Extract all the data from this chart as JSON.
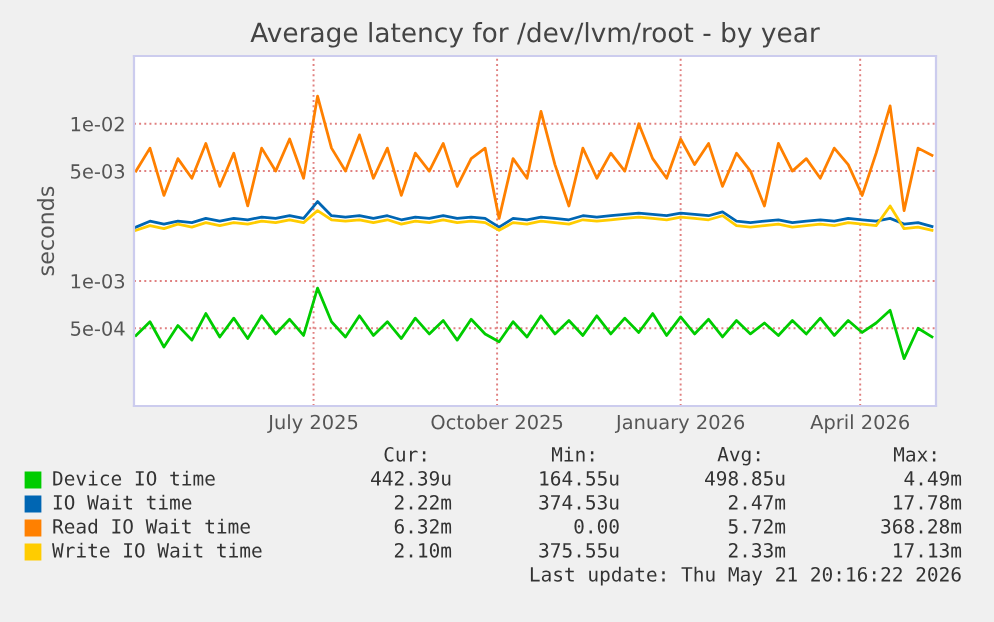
{
  "chart_data": {
    "type": "line",
    "title": "Average latency for /dev/lvm/root - by year",
    "ylabel": "seconds",
    "x": [
      "2025-04-03",
      "2025-04-10",
      "2025-04-17",
      "2025-04-24",
      "2025-05-01",
      "2025-05-08",
      "2025-05-15",
      "2025-05-22",
      "2025-05-29",
      "2025-06-05",
      "2025-06-12",
      "2025-06-19",
      "2025-06-26",
      "2025-07-03",
      "2025-07-10",
      "2025-07-17",
      "2025-07-24",
      "2025-07-31",
      "2025-08-07",
      "2025-08-14",
      "2025-08-21",
      "2025-08-28",
      "2025-09-04",
      "2025-09-11",
      "2025-09-18",
      "2025-09-25",
      "2025-10-02",
      "2025-10-09",
      "2025-10-16",
      "2025-10-23",
      "2025-10-30",
      "2025-11-06",
      "2025-11-13",
      "2025-11-20",
      "2025-11-27",
      "2025-12-04",
      "2025-12-11",
      "2025-12-18",
      "2025-12-25",
      "2026-01-01",
      "2026-01-08",
      "2026-01-15",
      "2026-01-22",
      "2026-01-29",
      "2026-02-05",
      "2026-02-12",
      "2026-02-19",
      "2026-02-26",
      "2026-03-05",
      "2026-03-12",
      "2026-03-19",
      "2026-03-26",
      "2026-04-02",
      "2026-04-09",
      "2026-04-16",
      "2026-04-23",
      "2026-04-30",
      "2026-05-07"
    ],
    "series": [
      {
        "name": "Device IO time",
        "color": "#00cc00",
        "values": [
          0.00045,
          0.00055,
          0.00038,
          0.00052,
          0.00042,
          0.00062,
          0.00044,
          0.00058,
          0.00043,
          0.0006,
          0.00046,
          0.00057,
          0.00045,
          0.0009,
          0.00055,
          0.00044,
          0.0006,
          0.00045,
          0.00055,
          0.00043,
          0.00058,
          0.00046,
          0.00056,
          0.00042,
          0.00057,
          0.00046,
          0.00041,
          0.00055,
          0.00044,
          0.0006,
          0.00046,
          0.00056,
          0.00045,
          0.0006,
          0.00046,
          0.00058,
          0.00047,
          0.00062,
          0.00045,
          0.00059,
          0.00046,
          0.00057,
          0.00044,
          0.00056,
          0.00046,
          0.00054,
          0.00045,
          0.00056,
          0.00046,
          0.00058,
          0.00045,
          0.00056,
          0.00047,
          0.00054,
          0.00065,
          0.00032,
          0.0005,
          0.00044
        ]
      },
      {
        "name": "IO Wait time",
        "color": "#0066b3",
        "values": [
          0.0022,
          0.0024,
          0.0023,
          0.0024,
          0.00235,
          0.0025,
          0.0024,
          0.0025,
          0.00245,
          0.00255,
          0.0025,
          0.0026,
          0.0025,
          0.0032,
          0.0026,
          0.00255,
          0.0026,
          0.0025,
          0.0026,
          0.00245,
          0.00255,
          0.0025,
          0.0026,
          0.0025,
          0.00255,
          0.0025,
          0.0022,
          0.0025,
          0.00245,
          0.00255,
          0.0025,
          0.00245,
          0.0026,
          0.00255,
          0.0026,
          0.00265,
          0.0027,
          0.00265,
          0.0026,
          0.0027,
          0.00265,
          0.0026,
          0.00275,
          0.0024,
          0.00235,
          0.0024,
          0.00245,
          0.00235,
          0.0024,
          0.00245,
          0.0024,
          0.0025,
          0.00245,
          0.0024,
          0.0025,
          0.0023,
          0.00235,
          0.00222
        ]
      },
      {
        "name": "Read IO Wait time",
        "color": "#ff8000",
        "values": [
          0.005,
          0.007,
          0.0035,
          0.006,
          0.0045,
          0.0075,
          0.004,
          0.0065,
          0.003,
          0.007,
          0.005,
          0.008,
          0.0045,
          0.015,
          0.007,
          0.005,
          0.0085,
          0.0045,
          0.007,
          0.0035,
          0.0065,
          0.005,
          0.0075,
          0.004,
          0.006,
          0.007,
          0.0025,
          0.006,
          0.0045,
          0.012,
          0.0055,
          0.003,
          0.007,
          0.0045,
          0.0065,
          0.005,
          0.01,
          0.006,
          0.0045,
          0.008,
          0.0055,
          0.0075,
          0.004,
          0.0065,
          0.005,
          0.003,
          0.0075,
          0.005,
          0.006,
          0.0045,
          0.007,
          0.0055,
          0.0035,
          0.0065,
          0.013,
          0.0028,
          0.007,
          0.0063
        ]
      },
      {
        "name": "Write IO Wait time",
        "color": "#ffcc00",
        "values": [
          0.0021,
          0.00225,
          0.00215,
          0.0023,
          0.0022,
          0.00235,
          0.00225,
          0.00235,
          0.0023,
          0.0024,
          0.00235,
          0.00245,
          0.00235,
          0.0028,
          0.00245,
          0.0024,
          0.00245,
          0.00235,
          0.00245,
          0.0023,
          0.0024,
          0.00235,
          0.00245,
          0.00235,
          0.0024,
          0.00235,
          0.0021,
          0.00235,
          0.0023,
          0.0024,
          0.00235,
          0.0023,
          0.00245,
          0.0024,
          0.00245,
          0.0025,
          0.00255,
          0.0025,
          0.00245,
          0.00255,
          0.0025,
          0.00245,
          0.0026,
          0.00225,
          0.0022,
          0.00225,
          0.0023,
          0.0022,
          0.00225,
          0.0023,
          0.00225,
          0.00235,
          0.0023,
          0.00225,
          0.003,
          0.00215,
          0.0022,
          0.0021
        ]
      }
    ],
    "log": true,
    "xlim": [
      "2025-04-02",
      "2026-05-09"
    ],
    "xticks": [
      {
        "value": "2025-07-01",
        "label": "July 2025"
      },
      {
        "value": "2025-10-01",
        "label": "October 2025"
      },
      {
        "value": "2026-01-01",
        "label": "January 2026"
      },
      {
        "value": "2026-04-01",
        "label": "April 2026"
      }
    ],
    "ylim": [
      0.00016,
      0.027
    ],
    "yticks": [
      {
        "value": 0.0005,
        "label": "5e-04"
      },
      {
        "value": 0.001,
        "label": "1e-03"
      },
      {
        "value": 0.005,
        "label": "5e-03"
      },
      {
        "value": 0.01,
        "label": "1e-02"
      }
    ],
    "grid": true,
    "legend": "bottom",
    "annotations": [
      "Cur:",
      "Min:",
      "Avg:",
      "Max:",
      "442.39u",
      "164.55u",
      "498.85u",
      "4.49m",
      "2.22m",
      "374.53u",
      "2.47m",
      "17.78m",
      "6.32m",
      "0.00",
      "5.72m",
      "368.28m",
      "2.10m",
      "375.55u",
      "2.33m",
      "17.13m",
      "Last update: Thu May 21 20:16:22 2026"
    ]
  }
}
